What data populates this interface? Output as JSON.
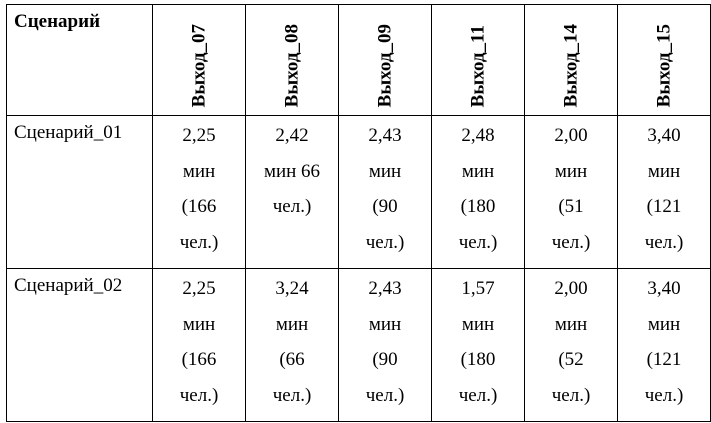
{
  "table": {
    "corner_label": "Сценарий",
    "exits": [
      "Выход_07",
      "Выход_08",
      "Выход_09",
      "Выход_11",
      "Выход_14",
      "Выход_15"
    ],
    "rows": [
      {
        "label": "Сценарий_01",
        "cells": [
          [
            "2,25",
            "мин",
            "(166",
            "чел.)"
          ],
          [
            "2,42",
            "мин  66",
            "чел.)"
          ],
          [
            "2,43",
            "мин",
            "(90",
            "чел.)"
          ],
          [
            "2,48",
            "мин",
            "(180",
            "чел.)"
          ],
          [
            "2,00",
            "мин",
            "(51",
            "чел.)"
          ],
          [
            "3,40",
            "мин",
            "(121",
            "чел.)"
          ]
        ]
      },
      {
        "label": "Сценарий_02",
        "cells": [
          [
            "2,25",
            "мин",
            "(166",
            "чел.)"
          ],
          [
            "3,24",
            "мин",
            "(66",
            "чел.)"
          ],
          [
            "2,43",
            "мин",
            "(90",
            "чел.)"
          ],
          [
            "1,57",
            "мин",
            "(180",
            "чел.)"
          ],
          [
            "2,00",
            "мин",
            "(52",
            "чел.)"
          ],
          [
            "3,40",
            "мин",
            "(121",
            "чел.)"
          ]
        ]
      }
    ]
  }
}
